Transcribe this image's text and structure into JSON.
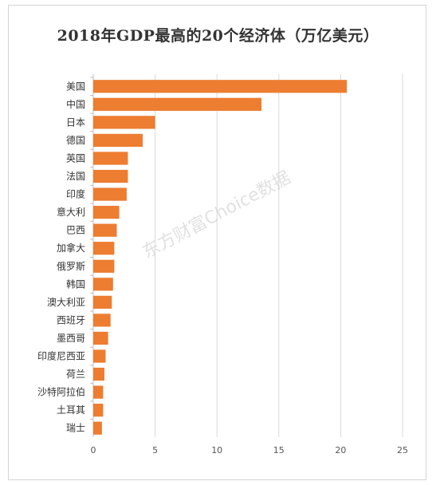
{
  "title": "2018年GDP最高的20个经济体（万亿美元）",
  "watermark": "东方财富Choice数据",
  "chart_data": {
    "type": "bar",
    "orientation": "horizontal",
    "title": "2018年GDP最高的20个经济体（万亿美元）",
    "xlabel": "",
    "ylabel": "",
    "categories": [
      "美国",
      "中国",
      "日本",
      "德国",
      "英国",
      "法国",
      "印度",
      "意大利",
      "巴西",
      "加拿大",
      "俄罗斯",
      "韩国",
      "澳大利亚",
      "西班牙",
      "墨西哥",
      "印度尼西亚",
      "荷兰",
      "沙特阿拉伯",
      "土耳其",
      "瑞士"
    ],
    "values": [
      20.5,
      13.6,
      5.0,
      4.0,
      2.8,
      2.8,
      2.7,
      2.1,
      1.9,
      1.7,
      1.7,
      1.6,
      1.5,
      1.4,
      1.2,
      1.0,
      0.9,
      0.8,
      0.8,
      0.7
    ],
    "xlim": [
      0,
      25
    ],
    "xticks": [
      0,
      5,
      10,
      15,
      20,
      25
    ],
    "grid": true,
    "bar_color": "#ed7d31",
    "grid_color": "#d9d9d9"
  }
}
